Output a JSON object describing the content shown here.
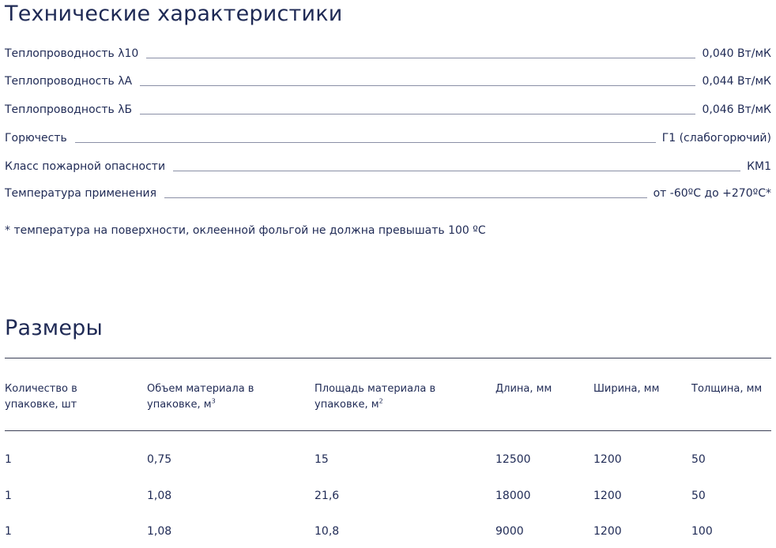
{
  "specs": {
    "title": "Технические характеристики",
    "rows": [
      {
        "label": "Теплопроводность λ10",
        "value": "0,040 Вт/мК"
      },
      {
        "label": "Теплопроводность λА",
        "value": "0,044 Вт/мК"
      },
      {
        "label": "Теплопроводность λБ",
        "value": "0,046 Вт/мК"
      },
      {
        "label": "Горючесть",
        "value": "Г1 (слабогорючий)"
      },
      {
        "label": "Класс пожарной опасности",
        "value": "КМ1"
      },
      {
        "label": "Температура применения",
        "value": "от -60ºС до +270ºС*"
      }
    ],
    "footnote": "* температура на поверхности, оклеенной фольгой не должна превышать 100 ºС"
  },
  "sizes": {
    "title": "Размеры",
    "headers": {
      "qty_line1": "Количество в",
      "qty_line2": "упаковке, шт",
      "volume_line1": "Объем материала в",
      "volume_line2": "упаковке, м",
      "volume_sup": "3",
      "area_line1": "Площадь материала в",
      "area_line2": "упаковке, м",
      "area_sup": "2",
      "length": "Длина, мм",
      "width": "Ширина, мм",
      "thickness": "Толщина, мм"
    },
    "rows": [
      {
        "qty": "1",
        "volume": "0,75",
        "area": "15",
        "length": "12500",
        "width": "1200",
        "thickness": "50"
      },
      {
        "qty": "1",
        "volume": "1,08",
        "area": "21,6",
        "length": "18000",
        "width": "1200",
        "thickness": "50"
      },
      {
        "qty": "1",
        "volume": "1,08",
        "area": "10,8",
        "length": "9000",
        "width": "1200",
        "thickness": "100"
      }
    ]
  }
}
